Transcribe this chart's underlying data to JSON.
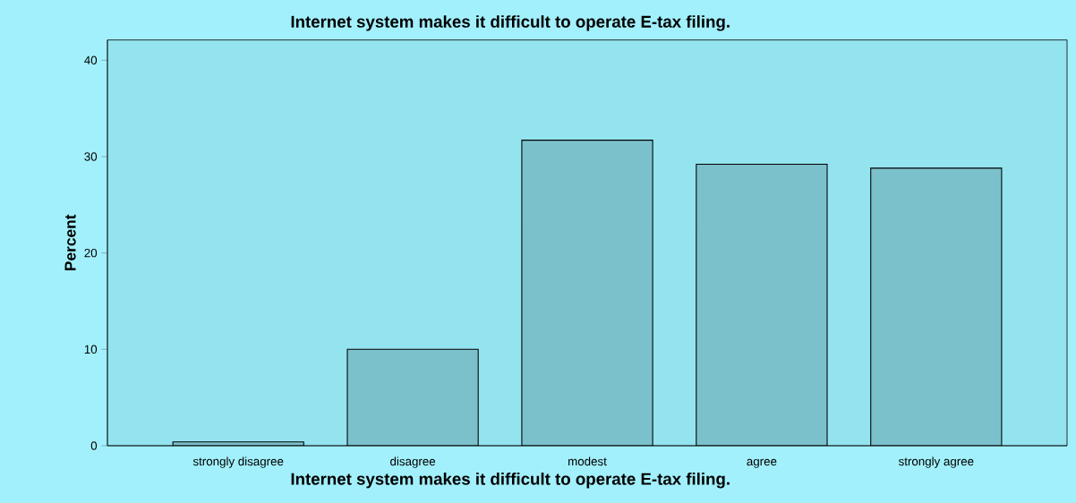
{
  "chart_data": {
    "type": "bar",
    "title": "Internet system makes it difficult to operate E-tax filing.",
    "xlabel": "Internet system makes it difficult to operate E-tax filing.",
    "ylabel": "Percent",
    "categories": [
      "strongly disagree",
      "disagree",
      "modest",
      "agree",
      "strongly agree"
    ],
    "values": [
      0.4,
      10.0,
      31.7,
      29.2,
      28.8
    ],
    "color": "#7bc1cc",
    "ylim": [
      0,
      42.1
    ],
    "yticks": [
      0,
      10,
      20,
      30,
      40
    ],
    "grid": false
  }
}
